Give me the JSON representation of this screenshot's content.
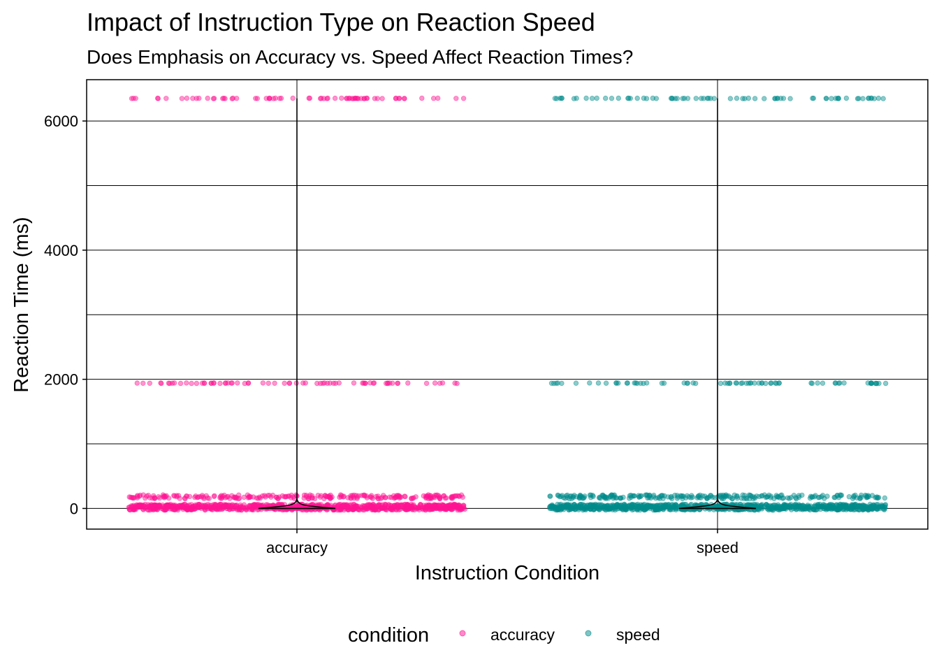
{
  "chart_data": {
    "type": "scatter",
    "title": "Impact of Instruction Type on Reaction Speed",
    "subtitle": "Does Emphasis on Accuracy vs. Speed Affect Reaction Times?",
    "xlabel": "Instruction Condition",
    "ylabel": "Reaction Time (ms)",
    "categories": [
      "accuracy",
      "speed"
    ],
    "ylim": [
      -320,
      6640
    ],
    "y_ticks": [
      0,
      2000,
      4000,
      6000
    ],
    "y_tick_labels": [
      "0",
      "2000",
      "4000",
      "6000"
    ],
    "grid": true,
    "legend_position": "bottom",
    "legend": {
      "title": "condition",
      "entries": [
        {
          "label": "accuracy",
          "color": "#ff1493"
        },
        {
          "label": "speed",
          "color": "#008b8b"
        }
      ]
    },
    "series": [
      {
        "name": "accuracy",
        "color": "#ff1493",
        "clusters_ms": [
          6350,
          1940,
          180,
          20
        ]
      },
      {
        "name": "speed",
        "color": "#008b8b",
        "clusters_ms": [
          6350,
          1940,
          180,
          20
        ]
      }
    ],
    "violin": {
      "color": "#000000",
      "max_ms": 6350,
      "bulk_ms": [
        0,
        150
      ]
    }
  }
}
